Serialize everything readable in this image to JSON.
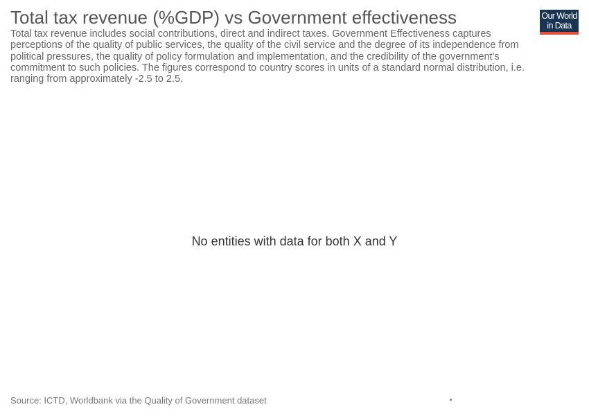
{
  "header": {
    "title": "Total tax revenue (%GDP) vs Government effectiveness",
    "subtitle": "Total tax revenue includes social contributions, direct and indirect taxes. Government Effectiveness captures perceptions of the quality of public services, the quality of the civil service and the degree of its independence from political pressures, the quality of policy formulation and implementation, and the credibility of the government's commitment to such policies. The figures correspond to country scores in units of a standard normal distribution, i.e. ranging from approximately -2.5 to 2.5."
  },
  "logo": {
    "line1": "Our World",
    "line2": "in Data",
    "background_color": "#1a3554",
    "accent_color": "#e0523b"
  },
  "chart_data": {
    "type": "scatter",
    "title": "Total tax revenue (%GDP) vs Government effectiveness",
    "subtitle": "Total tax revenue includes social contributions, direct and indirect taxes. Government Effectiveness captures perceptions of the quality of public services, the quality of the civil service and the degree of its independence from political pressures, the quality of policy formulation and implementation, and the credibility of the government's commitment to such policies. The figures correspond to country scores in units of a standard normal distribution, i.e. ranging from approximately -2.5 to 2.5.",
    "series": [],
    "empty_message": "No entities with data for both X and Y"
  },
  "footer": {
    "source": "Source: ICTD, Worldbank via the Quality of Government dataset"
  }
}
